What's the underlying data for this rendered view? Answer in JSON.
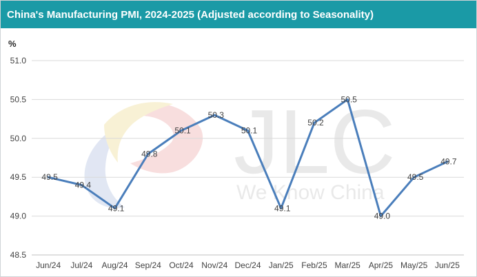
{
  "header": {
    "title": "China's Manufacturing PMI, 2024-2025 (Adjusted according to Seasonality)"
  },
  "colors": {
    "title_bar": "#1a9aa6",
    "line": "#4a7ebb",
    "gridline": "#d9d9d9",
    "text": "#404040"
  },
  "watermark": {
    "brand": "JLC",
    "tagline": "We Know China"
  },
  "chart_data": {
    "type": "line",
    "title": "China's Manufacturing PMI, 2024-2025 (Adjusted according to Seasonality)",
    "ylabel": "%",
    "xlabel": "",
    "categories": [
      "Jun/24",
      "Jul/24",
      "Aug/24",
      "Sep/24",
      "Oct/24",
      "Nov/24",
      "Dec/24",
      "Jan/25",
      "Feb/25",
      "Mar/25",
      "Apr/25",
      "May/25",
      "Jun/25"
    ],
    "series": [
      {
        "values": [
          49.5,
          49.4,
          49.1,
          49.8,
          50.1,
          50.3,
          50.1,
          49.1,
          50.2,
          50.5,
          49.0,
          49.5,
          49.7
        ]
      }
    ],
    "data_labels": [
      "49.5",
      "49.4",
      "49.1",
      "49.8",
      "50.1",
      "50.3",
      "50.1",
      "49.1",
      "50.2",
      "50.5",
      "49.0",
      "49.5",
      "49.7"
    ],
    "ylim": [
      48.5,
      51.0
    ],
    "yticks": [
      "48.5",
      "49.0",
      "49.5",
      "50.0",
      "50.5",
      "51.0"
    ],
    "grid": true,
    "legend": "none"
  }
}
